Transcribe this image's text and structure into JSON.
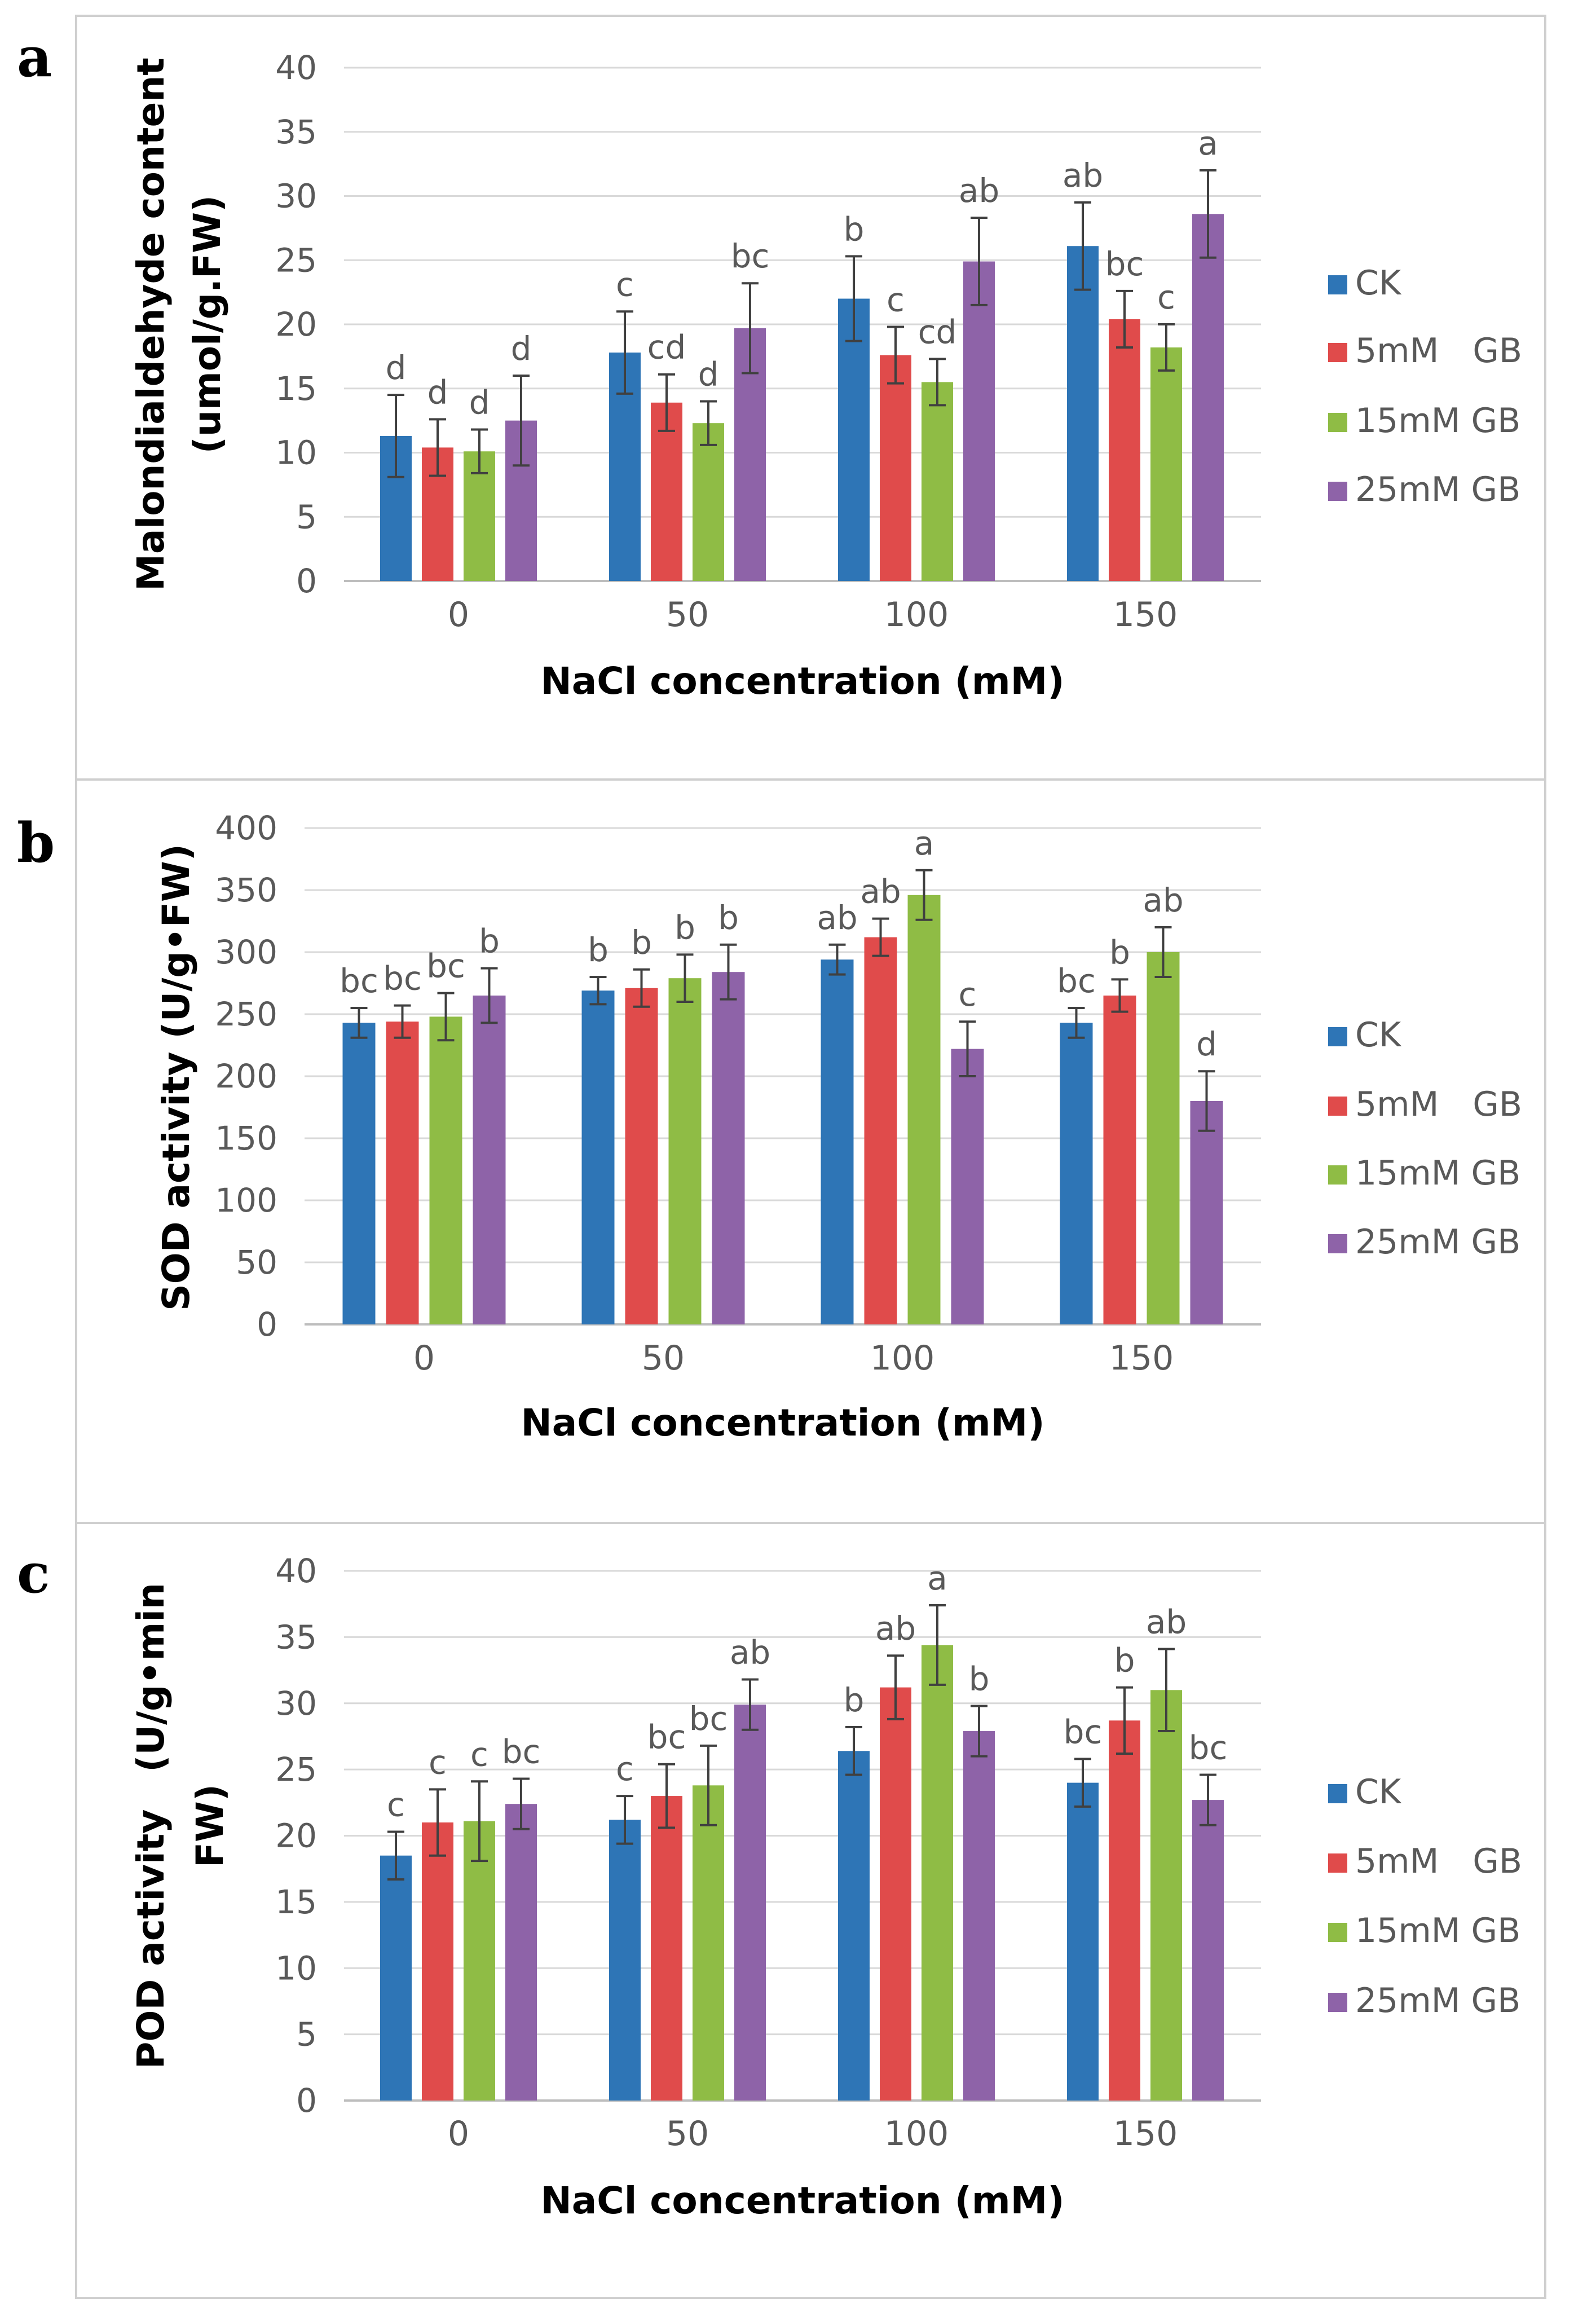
{
  "figure": {
    "panel_letters": [
      "a",
      "b",
      "c"
    ],
    "series_colors": [
      "#2e75b6",
      "#e04b4b",
      "#8fbc45",
      "#8e63a8"
    ]
  },
  "chart_data": [
    {
      "type": "bar",
      "panel": "a",
      "xlabel": "NaCl concentration (mM)",
      "ylabel": [
        "Malondialdehyde content",
        "(umol/g.FW)"
      ],
      "categories": [
        "0",
        "50",
        "100",
        "150"
      ],
      "ylim": [
        0,
        40
      ],
      "yticks": [
        0,
        5,
        10,
        15,
        20,
        25,
        30,
        35,
        40
      ],
      "grid": true,
      "legend": "right",
      "series": [
        {
          "name": "CK",
          "values": [
            11.3,
            17.8,
            22.0,
            26.1
          ],
          "errors": [
            3.2,
            3.2,
            3.3,
            3.4
          ],
          "labels": [
            "d",
            "c",
            "b",
            "ab"
          ]
        },
        {
          "name": "5mM　GB",
          "values": [
            10.4,
            13.9,
            17.6,
            20.4
          ],
          "errors": [
            2.2,
            2.2,
            2.2,
            2.2
          ],
          "labels": [
            "d",
            "cd",
            "c",
            "bc"
          ]
        },
        {
          "name": "15mM GB",
          "values": [
            10.1,
            12.3,
            15.5,
            18.2
          ],
          "errors": [
            1.7,
            1.7,
            1.8,
            1.8
          ],
          "labels": [
            "d",
            "d",
            "cd",
            "c"
          ]
        },
        {
          "name": "25mM GB",
          "values": [
            12.5,
            19.7,
            24.9,
            28.6
          ],
          "errors": [
            3.5,
            3.5,
            3.4,
            3.4
          ],
          "labels": [
            "d",
            "bc",
            "ab",
            "a"
          ]
        }
      ]
    },
    {
      "type": "bar",
      "panel": "b",
      "xlabel": "NaCl concentration (mM)",
      "ylabel": [
        "SOD activity (U/g•FW)"
      ],
      "categories": [
        "0",
        "50",
        "100",
        "150"
      ],
      "ylim": [
        0,
        400
      ],
      "yticks": [
        0,
        50,
        100,
        150,
        200,
        250,
        300,
        350,
        400
      ],
      "grid": true,
      "legend": "right",
      "series": [
        {
          "name": "CK",
          "values": [
            243,
            269,
            294,
            243
          ],
          "errors": [
            12,
            11,
            12,
            12
          ],
          "labels": [
            "bc",
            "b",
            "ab",
            "bc"
          ]
        },
        {
          "name": "5mM　GB",
          "values": [
            244,
            271,
            312,
            265
          ],
          "errors": [
            13,
            15,
            15,
            13
          ],
          "labels": [
            "bc",
            "b",
            "ab",
            "b"
          ]
        },
        {
          "name": "15mM GB",
          "values": [
            248,
            279,
            346,
            300
          ],
          "errors": [
            19,
            19,
            20,
            20
          ],
          "labels": [
            "bc",
            "b",
            "a",
            "ab"
          ]
        },
        {
          "name": "25mM GB",
          "values": [
            265,
            284,
            222,
            180
          ],
          "errors": [
            22,
            22,
            22,
            24
          ],
          "labels": [
            "b",
            "b",
            "c",
            "d"
          ]
        }
      ]
    },
    {
      "type": "bar",
      "panel": "c",
      "xlabel": "NaCl concentration (mM)",
      "ylabel": [
        "POD activity　(U/g•min",
        "FW)"
      ],
      "categories": [
        "0",
        "50",
        "100",
        "150"
      ],
      "ylim": [
        0,
        40
      ],
      "yticks": [
        0,
        5,
        10,
        15,
        20,
        25,
        30,
        35,
        40
      ],
      "grid": true,
      "legend": "right",
      "series": [
        {
          "name": "CK",
          "values": [
            18.5,
            21.2,
            26.4,
            24.0
          ],
          "errors": [
            1.8,
            1.8,
            1.8,
            1.8
          ],
          "labels": [
            "c",
            "c",
            "b",
            "bc"
          ]
        },
        {
          "name": "5mM　GB",
          "values": [
            21.0,
            23.0,
            31.2,
            28.7
          ],
          "errors": [
            2.5,
            2.4,
            2.4,
            2.5
          ],
          "labels": [
            "c",
            "bc",
            "ab",
            "b"
          ]
        },
        {
          "name": "15mM GB",
          "values": [
            21.1,
            23.8,
            34.4,
            31.0
          ],
          "errors": [
            3.0,
            3.0,
            3.0,
            3.1
          ],
          "labels": [
            "c",
            "bc",
            "a",
            "ab"
          ]
        },
        {
          "name": "25mM GB",
          "values": [
            22.4,
            29.9,
            27.9,
            22.7
          ],
          "errors": [
            1.9,
            1.9,
            1.9,
            1.9
          ],
          "labels": [
            "bc",
            "ab",
            "b",
            "bc"
          ]
        }
      ]
    }
  ]
}
